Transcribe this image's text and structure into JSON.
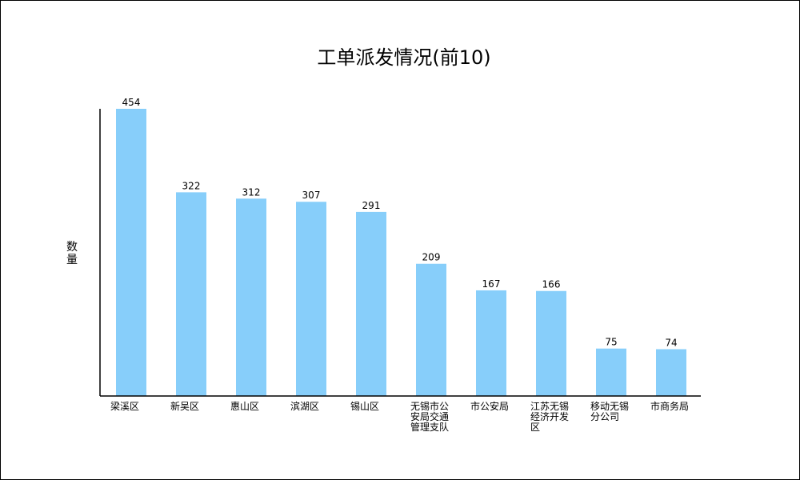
{
  "chart_data": {
    "type": "bar",
    "title": "工单派发情况(前10)",
    "xlabel": "",
    "ylabel": "数量",
    "ylim": [
      0,
      454
    ],
    "grid": false,
    "legend": "none",
    "bar_color": "#87CEFA",
    "axis_color": "#000000",
    "categories": [
      "梁溪区",
      "新吴区",
      "惠山区",
      "滨湖区",
      "锡山区",
      "无锡市公安局交通管理支队",
      "市公安局",
      "江苏无锡经济开发区",
      "移动无锡分公司",
      "市商务局"
    ],
    "category_lines": [
      [
        "梁溪区"
      ],
      [
        "新吴区"
      ],
      [
        "惠山区"
      ],
      [
        "滨湖区"
      ],
      [
        "锡山区"
      ],
      [
        "无锡市公",
        "安局交通",
        "管理支队"
      ],
      [
        "市公安局"
      ],
      [
        "江苏无锡",
        "经济开发",
        "区"
      ],
      [
        "移动无锡",
        "分公司"
      ],
      [
        "市商务局"
      ]
    ],
    "values": [
      454,
      322,
      312,
      307,
      291,
      209,
      167,
      166,
      75,
      74
    ]
  }
}
